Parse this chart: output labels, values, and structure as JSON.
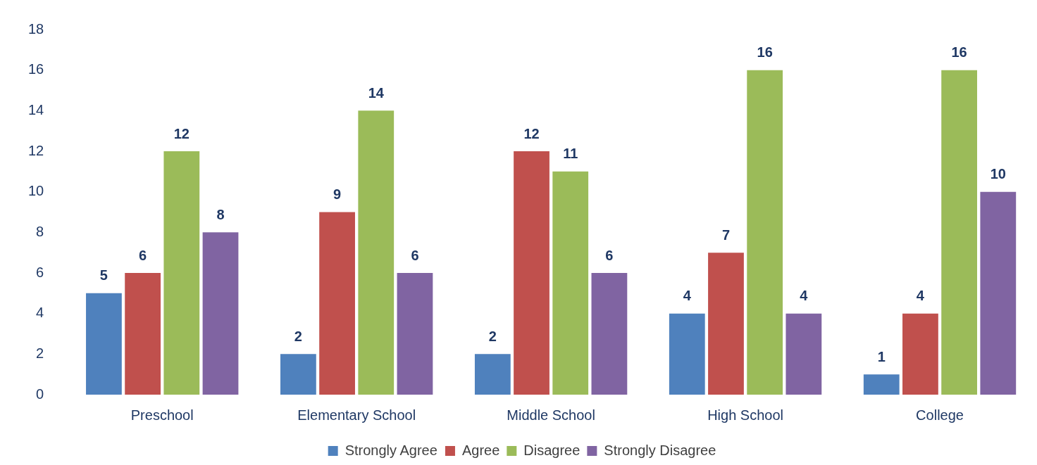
{
  "chart_data": {
    "type": "bar",
    "categories": [
      "Preschool",
      "Elementary School",
      "Middle School",
      "High School",
      "College"
    ],
    "series": [
      {
        "name": "Strongly Agree",
        "color": "#4f81bd",
        "values": [
          5,
          2,
          2,
          4,
          1
        ]
      },
      {
        "name": "Agree",
        "color": "#c0504d",
        "values": [
          6,
          9,
          12,
          7,
          4
        ]
      },
      {
        "name": "Disagree",
        "color": "#9bbb59",
        "values": [
          12,
          14,
          11,
          16,
          16
        ]
      },
      {
        "name": "Strongly Disagree",
        "color": "#8064a2",
        "values": [
          8,
          6,
          6,
          4,
          10
        ]
      }
    ],
    "ylim": [
      0,
      18
    ],
    "yticks": [
      0,
      2,
      4,
      6,
      8,
      10,
      12,
      14,
      16,
      18
    ],
    "grid": false,
    "legend": "bottom",
    "data_labels": true
  }
}
